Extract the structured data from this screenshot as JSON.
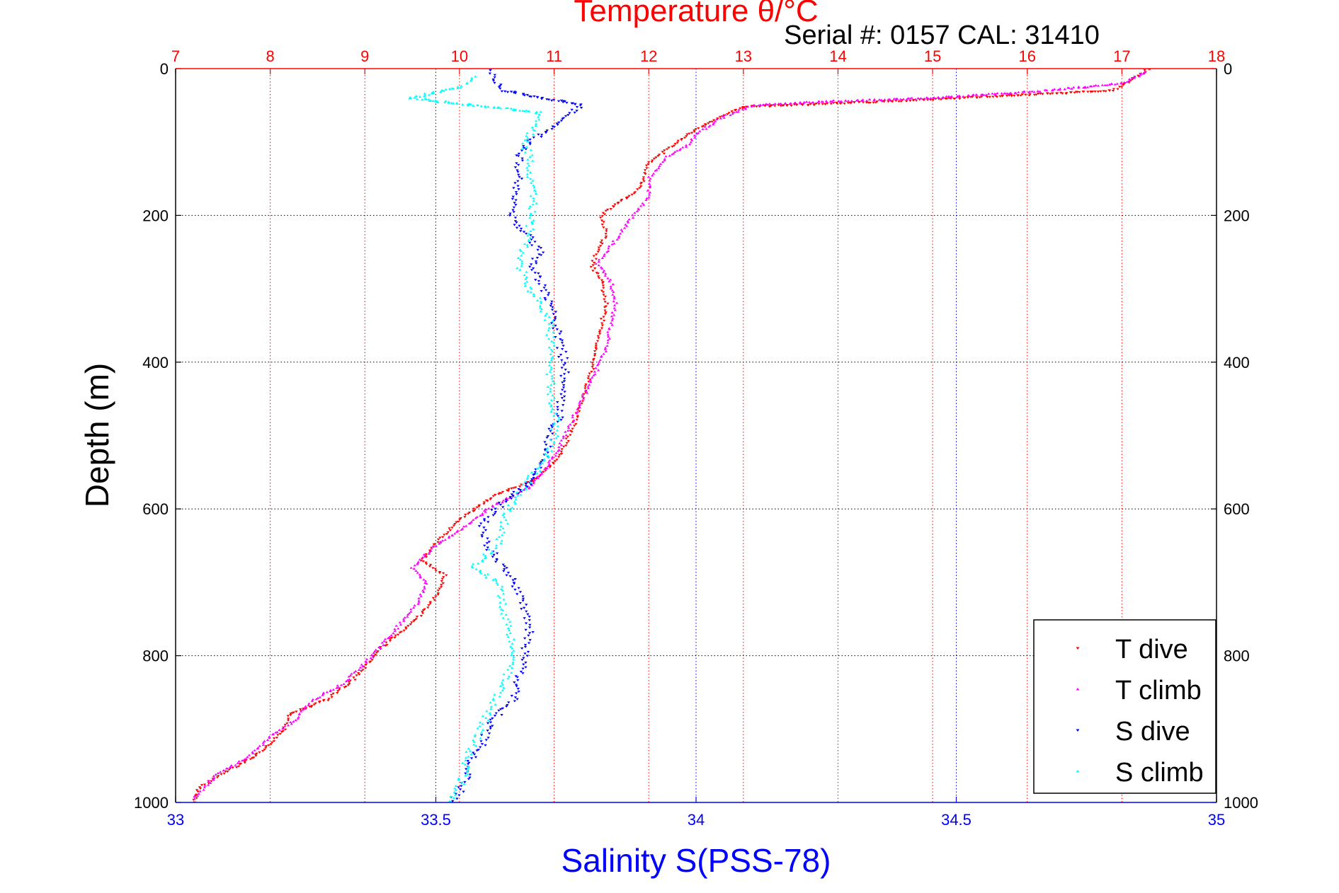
{
  "chart_data": {
    "type": "scatter",
    "title": "Temperature θ/°C",
    "subtitle": "Serial #: 0157  CAL: 31410",
    "xlabel": "Salinity S(PSS-78)",
    "ylabel": "Depth (m)",
    "x_top": {
      "range": [
        7,
        18
      ],
      "ticks": [
        "7",
        "8",
        "9",
        "10",
        "11",
        "12",
        "13",
        "14",
        "15",
        "16",
        "17",
        "18"
      ],
      "color": "#ff0000"
    },
    "x_bottom": {
      "range": [
        33,
        35
      ],
      "ticks": [
        "33",
        "33.5",
        "34",
        "34.5",
        "35"
      ],
      "color": "#0000ff"
    },
    "y": {
      "range": [
        0,
        1000
      ],
      "reversed": true,
      "ticks": [
        "0",
        "200",
        "400",
        "600",
        "800",
        "1000"
      ]
    },
    "grid": true,
    "legend_position": "bottom-right",
    "series": [
      {
        "name": "T dive",
        "axis": "temperature",
        "color": "#ff0000",
        "marker": "triangle-down",
        "points": [
          [
            17.3,
            0
          ],
          [
            17.1,
            15
          ],
          [
            16.9,
            30
          ],
          [
            14.5,
            45
          ],
          [
            13.0,
            52
          ],
          [
            12.7,
            70
          ],
          [
            12.4,
            90
          ],
          [
            12.2,
            110
          ],
          [
            12.0,
            130
          ],
          [
            11.95,
            150
          ],
          [
            11.85,
            170
          ],
          [
            11.65,
            185
          ],
          [
            11.5,
            200
          ],
          [
            11.55,
            225
          ],
          [
            11.45,
            250
          ],
          [
            11.4,
            270
          ],
          [
            11.5,
            290
          ],
          [
            11.55,
            320
          ],
          [
            11.5,
            350
          ],
          [
            11.45,
            380
          ],
          [
            11.4,
            410
          ],
          [
            11.3,
            450
          ],
          [
            11.2,
            490
          ],
          [
            11.05,
            530
          ],
          [
            10.8,
            560
          ],
          [
            10.4,
            580
          ],
          [
            10.05,
            610
          ],
          [
            9.8,
            640
          ],
          [
            9.6,
            670
          ],
          [
            9.85,
            690
          ],
          [
            9.75,
            720
          ],
          [
            9.55,
            750
          ],
          [
            9.25,
            780
          ],
          [
            9.1,
            800
          ],
          [
            8.9,
            830
          ],
          [
            8.6,
            860
          ],
          [
            8.2,
            880
          ],
          [
            8.15,
            900
          ],
          [
            8.0,
            920
          ],
          [
            7.8,
            940
          ],
          [
            7.5,
            960
          ],
          [
            7.25,
            980
          ],
          [
            7.2,
            1000
          ]
        ]
      },
      {
        "name": "T climb",
        "axis": "temperature",
        "color": "#ff00ff",
        "marker": "triangle-up",
        "points": [
          [
            17.25,
            5
          ],
          [
            17.0,
            20
          ],
          [
            16.2,
            30
          ],
          [
            15.0,
            40
          ],
          [
            13.8,
            45
          ],
          [
            13.1,
            50
          ],
          [
            12.8,
            65
          ],
          [
            12.55,
            85
          ],
          [
            12.4,
            105
          ],
          [
            12.2,
            120
          ],
          [
            12.1,
            135
          ],
          [
            12.0,
            150
          ],
          [
            12.0,
            175
          ],
          [
            11.9,
            190
          ],
          [
            11.8,
            205
          ],
          [
            11.7,
            225
          ],
          [
            11.55,
            250
          ],
          [
            11.45,
            265
          ],
          [
            11.6,
            290
          ],
          [
            11.65,
            320
          ],
          [
            11.6,
            350
          ],
          [
            11.55,
            380
          ],
          [
            11.45,
            410
          ],
          [
            11.3,
            450
          ],
          [
            11.15,
            490
          ],
          [
            11.0,
            530
          ],
          [
            10.75,
            570
          ],
          [
            10.3,
            600
          ],
          [
            10.0,
            630
          ],
          [
            9.75,
            650
          ],
          [
            9.5,
            680
          ],
          [
            9.65,
            700
          ],
          [
            9.55,
            730
          ],
          [
            9.35,
            760
          ],
          [
            9.15,
            790
          ],
          [
            9.0,
            810
          ],
          [
            8.75,
            840
          ],
          [
            8.45,
            860
          ],
          [
            8.25,
            890
          ],
          [
            8.0,
            910
          ],
          [
            7.75,
            940
          ],
          [
            7.45,
            960
          ],
          [
            7.3,
            980
          ],
          [
            7.2,
            995
          ]
        ]
      },
      {
        "name": "S dive",
        "axis": "salinity",
        "color": "#0000ff",
        "marker": "triangle-down",
        "points": [
          [
            33.6,
            0
          ],
          [
            33.61,
            15
          ],
          [
            33.63,
            30
          ],
          [
            33.78,
            50
          ],
          [
            33.75,
            65
          ],
          [
            33.72,
            80
          ],
          [
            33.68,
            100
          ],
          [
            33.66,
            120
          ],
          [
            33.66,
            150
          ],
          [
            33.65,
            180
          ],
          [
            33.65,
            210
          ],
          [
            33.68,
            230
          ],
          [
            33.7,
            250
          ],
          [
            33.68,
            270
          ],
          [
            33.7,
            290
          ],
          [
            33.72,
            320
          ],
          [
            33.73,
            350
          ],
          [
            33.74,
            380
          ],
          [
            33.75,
            410
          ],
          [
            33.74,
            440
          ],
          [
            33.74,
            470
          ],
          [
            33.72,
            500
          ],
          [
            33.71,
            530
          ],
          [
            33.69,
            560
          ],
          [
            33.63,
            590
          ],
          [
            33.59,
            620
          ],
          [
            33.6,
            650
          ],
          [
            33.63,
            680
          ],
          [
            33.66,
            710
          ],
          [
            33.67,
            740
          ],
          [
            33.68,
            770
          ],
          [
            33.67,
            800
          ],
          [
            33.66,
            830
          ],
          [
            33.65,
            860
          ],
          [
            33.62,
            880
          ],
          [
            33.6,
            900
          ],
          [
            33.59,
            920
          ],
          [
            33.57,
            940
          ],
          [
            33.56,
            960
          ],
          [
            33.55,
            980
          ],
          [
            33.53,
            1000
          ]
        ]
      },
      {
        "name": "S climb",
        "axis": "salinity",
        "color": "#00ffff",
        "marker": "triangle-up",
        "points": [
          [
            33.57,
            10
          ],
          [
            33.55,
            25
          ],
          [
            33.45,
            40
          ],
          [
            33.7,
            60
          ],
          [
            33.69,
            80
          ],
          [
            33.67,
            100
          ],
          [
            33.68,
            120
          ],
          [
            33.68,
            150
          ],
          [
            33.69,
            180
          ],
          [
            33.68,
            200
          ],
          [
            33.68,
            230
          ],
          [
            33.66,
            260
          ],
          [
            33.67,
            290
          ],
          [
            33.7,
            320
          ],
          [
            33.72,
            350
          ],
          [
            33.72,
            380
          ],
          [
            33.72,
            410
          ],
          [
            33.72,
            440
          ],
          [
            33.73,
            470
          ],
          [
            33.73,
            500
          ],
          [
            33.71,
            530
          ],
          [
            33.68,
            560
          ],
          [
            33.65,
            590
          ],
          [
            33.63,
            620
          ],
          [
            33.62,
            650
          ],
          [
            33.57,
            680
          ],
          [
            33.62,
            700
          ],
          [
            33.63,
            730
          ],
          [
            33.64,
            760
          ],
          [
            33.65,
            790
          ],
          [
            33.64,
            820
          ],
          [
            33.62,
            850
          ],
          [
            33.6,
            880
          ],
          [
            33.58,
            910
          ],
          [
            33.56,
            940
          ],
          [
            33.55,
            970
          ],
          [
            33.53,
            1000
          ]
        ]
      }
    ]
  }
}
